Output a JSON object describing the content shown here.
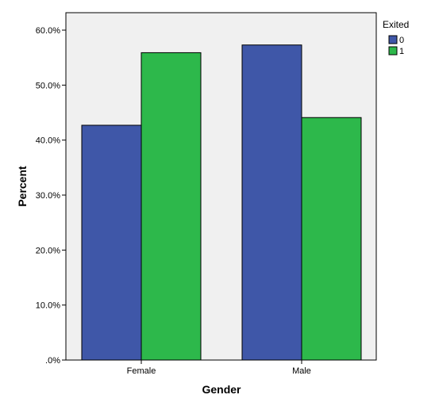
{
  "chart_data": {
    "type": "bar",
    "title": "",
    "xlabel": "Gender",
    "ylabel": "Percent",
    "categories": [
      "Female",
      "Male"
    ],
    "series": [
      {
        "name": "0",
        "values": [
          42.7,
          57.3
        ],
        "color": "#3f57a8"
      },
      {
        "name": "1",
        "values": [
          55.9,
          44.1
        ],
        "color": "#2db84b"
      }
    ],
    "ylim": [
      0,
      65
    ],
    "yticks": [
      0,
      10,
      20,
      30,
      40,
      50,
      60
    ],
    "ytick_labels": [
      ".0%",
      "10.0%",
      "20.0%",
      "30.0%",
      "40.0%",
      "50.0%",
      "60.0%"
    ],
    "legend": {
      "title": "Exited",
      "placement": "right"
    },
    "grid": false,
    "plot_background": "#f0f0f0"
  }
}
